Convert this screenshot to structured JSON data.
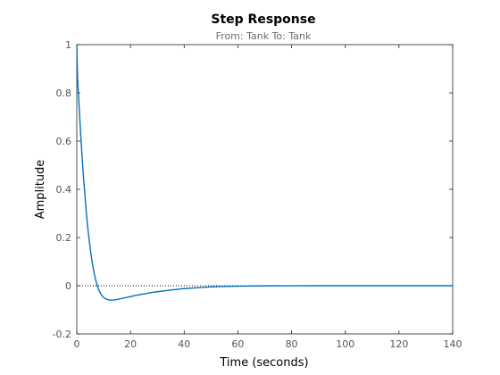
{
  "chart_data": {
    "type": "line",
    "title": "Step Response",
    "subtitle": "From: Tank  To: Tank",
    "xlabel": "Time (seconds)",
    "ylabel": "Amplitude",
    "xlim": [
      0,
      140
    ],
    "ylim": [
      -0.2,
      1
    ],
    "xticks": [
      0,
      20,
      40,
      60,
      80,
      100,
      120,
      140
    ],
    "yticks": [
      -0.2,
      0,
      0.2,
      0.4,
      0.6,
      0.8,
      1
    ],
    "xtick_labels": [
      "0",
      "20",
      "40",
      "60",
      "80",
      "100",
      "120",
      "140"
    ],
    "ytick_labels": [
      "-0.2",
      "0",
      "0.2",
      "0.4",
      "0.6",
      "0.8",
      "1"
    ],
    "grid": false,
    "reference_line": {
      "y": 0,
      "style": "dotted",
      "x_range": [
        0,
        70
      ]
    },
    "series_color": "#0072bd",
    "series": [
      {
        "x": [
          0,
          0.3,
          0.6,
          1,
          1.5,
          2,
          2.5,
          3,
          3.5,
          4,
          4.5,
          5,
          5.5,
          6,
          6.5,
          7,
          7.5,
          8,
          8.5,
          9,
          9.5,
          10,
          11,
          12,
          13,
          14,
          15,
          16,
          18,
          20,
          22,
          25,
          28,
          30,
          35,
          40,
          45,
          50,
          55,
          60,
          65,
          70,
          80,
          90,
          100,
          110,
          120,
          130,
          140
        ],
        "y": [
          1.0,
          0.86,
          0.8,
          0.72,
          0.62,
          0.53,
          0.45,
          0.38,
          0.31,
          0.25,
          0.2,
          0.155,
          0.115,
          0.08,
          0.05,
          0.025,
          0.005,
          -0.012,
          -0.025,
          -0.035,
          -0.043,
          -0.049,
          -0.056,
          -0.059,
          -0.06,
          -0.059,
          -0.057,
          -0.055,
          -0.05,
          -0.045,
          -0.04,
          -0.034,
          -0.028,
          -0.025,
          -0.018,
          -0.012,
          -0.008,
          -0.005,
          -0.003,
          -0.002,
          -0.001,
          -0.0005,
          -0.0002,
          0,
          0,
          0,
          0,
          0,
          0
        ]
      }
    ]
  }
}
